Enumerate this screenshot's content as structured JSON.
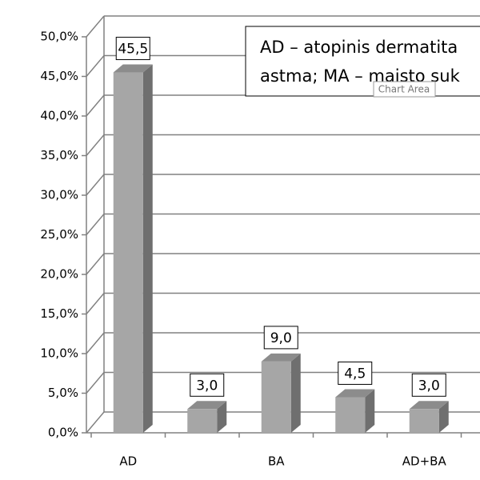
{
  "chart_data": {
    "type": "bar",
    "categories": [
      "AD",
      null,
      "BA",
      null,
      "AD+BA"
    ],
    "values": [
      45.5,
      3.0,
      9.0,
      4.5,
      3.0
    ],
    "value_labels": [
      "45,5",
      "3,0",
      "9,0",
      "4,5",
      "3,0"
    ],
    "color": "#a6a6a6",
    "ylim": [
      0,
      50
    ],
    "yticks": [
      {
        "value": 0,
        "label": "0,0%"
      },
      {
        "value": 5,
        "label": "5,0%"
      },
      {
        "value": 10,
        "label": "10,0%"
      },
      {
        "value": 15,
        "label": "15,0%"
      },
      {
        "value": 20,
        "label": "20,0%"
      },
      {
        "value": 25,
        "label": "25,0%"
      },
      {
        "value": 30,
        "label": "30,0%"
      },
      {
        "value": 35,
        "label": "35,0%"
      },
      {
        "value": 40,
        "label": "40,0%"
      },
      {
        "value": 45,
        "label": "45,0%"
      },
      {
        "value": 50,
        "label": "50,0%"
      }
    ],
    "grid": true,
    "annotation": [
      "AD – atopinis dermatita",
      "astma; MA – maisto suk"
    ],
    "tooltip": "Chart Area"
  }
}
